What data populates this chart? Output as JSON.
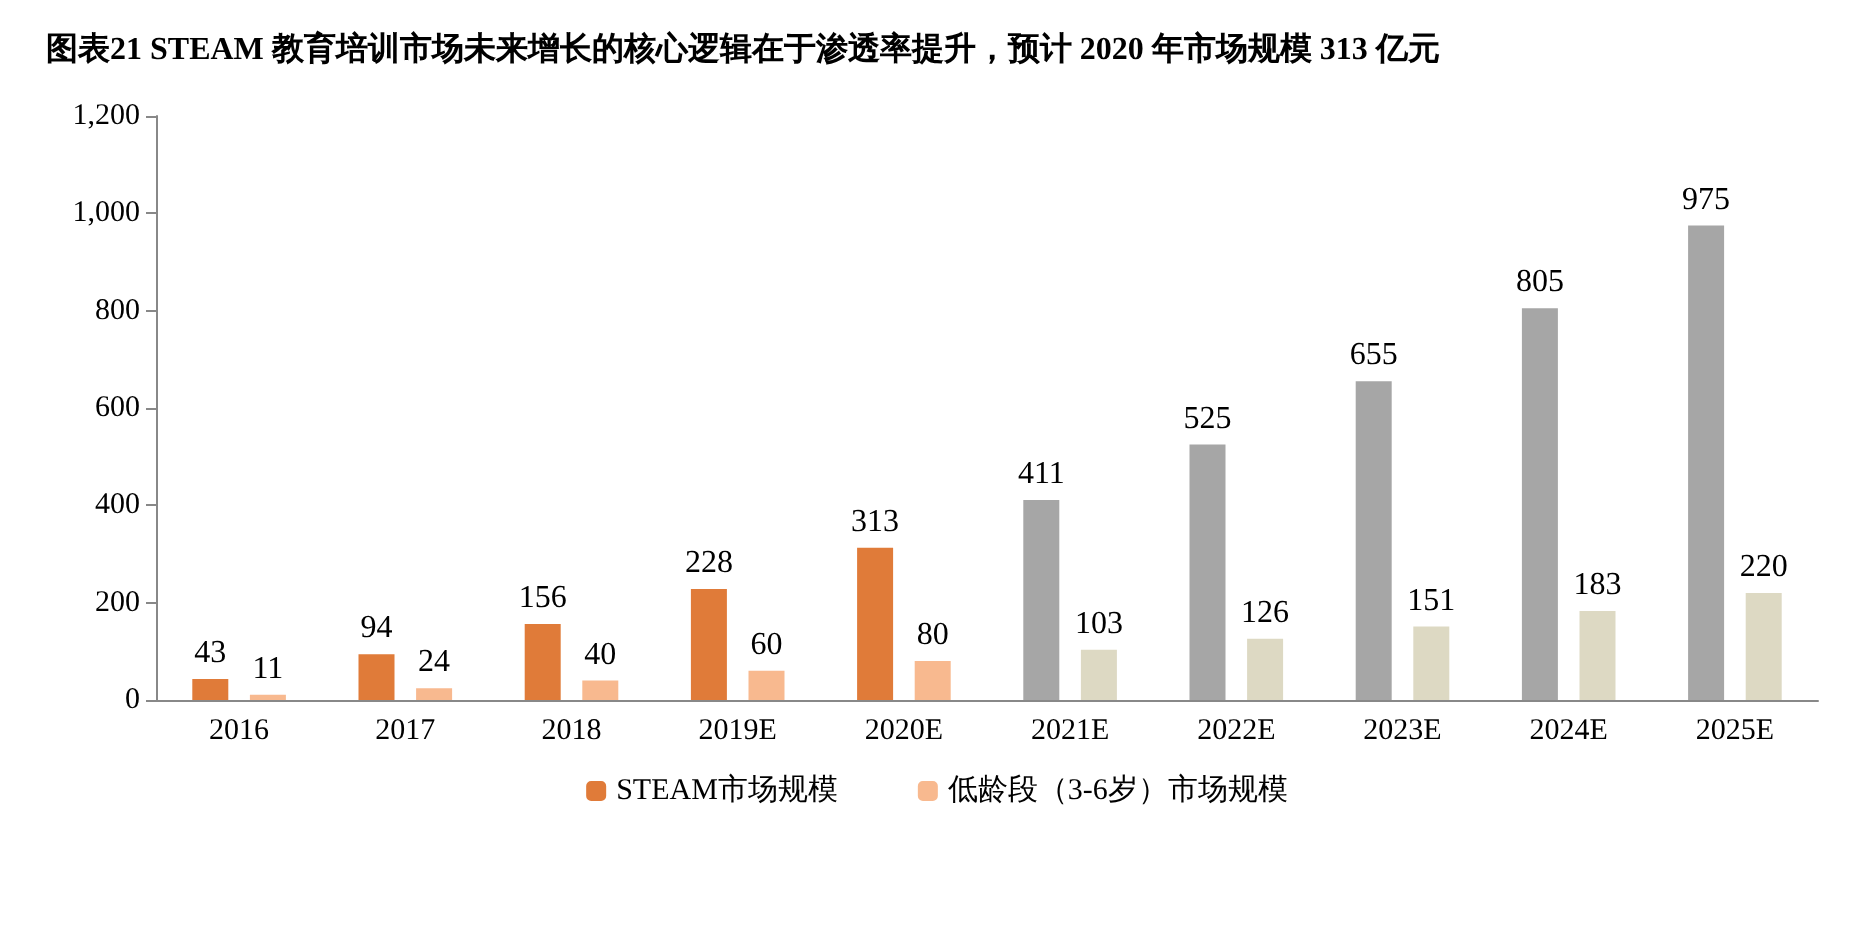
{
  "chart_data": {
    "type": "bar",
    "title": "图表21 STEAM 教育培训市场未来增长的核心逻辑在于渗透率提升，预计 2020 年市场规模 313 亿元",
    "categories": [
      "2016",
      "2017",
      "2018",
      "2019E",
      "2020E",
      "2021E",
      "2022E",
      "2023E",
      "2024E",
      "2025E"
    ],
    "series": [
      {
        "name": "STEAM市场规模",
        "color": "#e07b39",
        "colors": [
          "#e07b39",
          "#e07b39",
          "#e07b39",
          "#e07b39",
          "#e07b39",
          "#a6a6a6",
          "#a6a6a6",
          "#a6a6a6",
          "#a6a6a6",
          "#a6a6a6"
        ],
        "values": [
          43,
          94,
          156,
          228,
          313,
          411,
          525,
          655,
          805,
          975
        ]
      },
      {
        "name": "低龄段（3-6岁）市场规模",
        "color": "#f8b98f",
        "colors": [
          "#f8b98f",
          "#f8b98f",
          "#f8b98f",
          "#f8b98f",
          "#f8b98f",
          "#ddd9c3",
          "#ddd9c3",
          "#ddd9c3",
          "#ddd9c3",
          "#ddd9c3"
        ],
        "values": [
          11,
          24,
          40,
          60,
          80,
          103,
          126,
          151,
          183,
          220
        ]
      }
    ],
    "ylim": [
      0,
      1200
    ],
    "yticks": [
      0,
      200,
      400,
      600,
      800,
      {
        "value": 1000,
        "label": "1,000"
      },
      {
        "value": 1200,
        "label": "1,200"
      }
    ],
    "data_labels": true,
    "legend": "bottom",
    "grid": false
  }
}
